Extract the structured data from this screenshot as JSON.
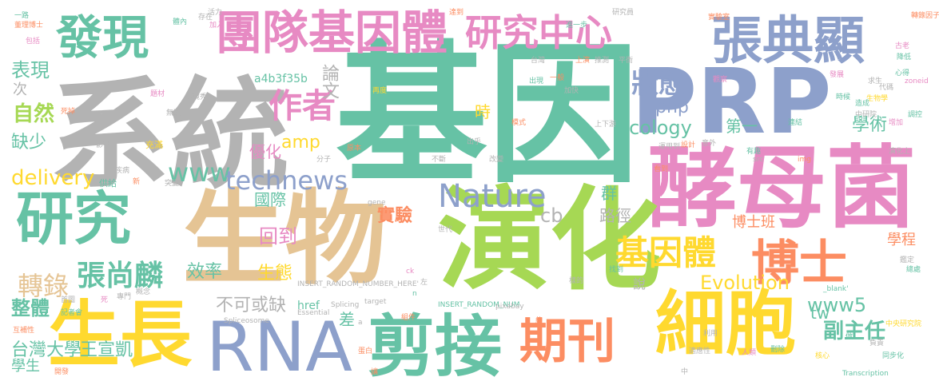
{
  "palette": {
    "teal": "#66c2a5",
    "orange": "#fc8d62",
    "blue": "#8da0cb",
    "pink": "#e78ac3",
    "green": "#a6d854",
    "yellow": "#ffd92f",
    "tan": "#e5c494",
    "grey": "#b3b3b3"
  },
  "words": {
    "jiyin": "基因",
    "xitong": "系統",
    "prp": "PRP",
    "jiaomujun": "酵母菌",
    "yanhua": "演化",
    "shengwu": "生物",
    "shengzhang": "生長",
    "rna": "RNA",
    "jianjie": "剪接",
    "qikan": "期刊",
    "xibao": "細胞",
    "tuanduijiyinti": "團隊基因體",
    "yanjiuzhongxin": "研究中心",
    "zhangdianxian": "張典顯",
    "faxian": "發現",
    "yanjiu": "研究",
    "boshi": "博士",
    "jiyinti": "基因體",
    "nature": "Nature",
    "zuozhe": "作者",
    "zhuangtai": "狀態",
    "www": "www",
    "technews": "technews",
    "zhangshanglin": "張尚麟",
    "zhuanlu": "轉錄",
    "delivery": "delivery",
    "ziran": "自然",
    "biaoxian": "表現",
    "ecology": "Ecology",
    "evolution": "Evolution",
    "www5": "www5",
    "fuzhuren": "副主任",
    "taiwandaxue": "台灣大學",
    "wangxuankai": "王宣凱",
    "zhengti": "整體",
    "xiaolv": "效率",
    "shengtai": "生態",
    "buke": "不可或缺",
    "huidao": "回到",
    "shiyan": "實驗",
    "guoji": "國際",
    "youhua": "優化",
    "amp": "amp",
    "php": "php",
    "lunwen": "論文",
    "a4b3": "a4b3f35b",
    "shi": "時",
    "xueshu": "學術",
    "diyi": "第一",
    "qun": "群",
    "lujing": "路徑",
    "boshiban": "博士班",
    "xuecheng": "學程",
    "cb": "cb",
    "tw": "tw",
    "shuo": "說",
    "cha": "差",
    "queshao": "缺少",
    "ci": "次",
    "xuesheng": "學生",
    "href": "href",
    "small": [
      "一路",
      "董理博士",
      "包括",
      "體內",
      "存在",
      "達到",
      "加入",
      "再度",
      "進一步",
      "研究員",
      "實驗室",
      "上演",
      "推測",
      "古老",
      "轉錄因子",
      "活力",
      "降低",
      "一般",
      "時候",
      "觀察",
      "心得",
      "模式",
      "出現",
      "發展",
      "生物學",
      "代碼",
      "造成",
      "調控",
      "增加",
      "連結",
      "上下游",
      "求生",
      "zoneid",
      "中研院",
      "死掉",
      "無疑",
      "題材",
      "疾病",
      "新",
      "突變",
      "概念",
      "運用到",
      "設計",
      "意外",
      "有趣",
      "看到",
      "實境秀",
      "分子",
      "平衡",
      "開發",
      "刪除",
      "核心",
      "_blank'",
      "target",
      "INSERT_RANDOM_NUM",
      "INSERT_RANDOM_NUMBER_HERE'",
      "Splicing",
      "Essential",
      "Transcription",
      "Spliceosome",
      "pixabay",
      "gene",
      "src",
      "img",
      "中央研究院",
      "做",
      "鑑定",
      "利用",
      "不斷",
      "原本",
      "同步化",
      "記者會",
      "首圖",
      "專門",
      "死",
      "人類",
      "組件",
      "互補性",
      "充滿",
      "演化上",
      "影響",
      "總處",
      "世代",
      "供給",
      "負責",
      "適應性",
      "找到",
      "樣的",
      "ck",
      "左",
      "約",
      "中",
      "n",
      "a",
      "蛋白",
      "讓",
      "台灣",
      "加快",
      "出乎",
      "改變",
      "大幅",
      "擔任",
      "永遠",
      "藥物",
      "損失",
      "步驟",
      "低",
      "說明",
      "指出",
      "aw",
      "sv",
      "rp",
      "ke"
    ]
  }
}
